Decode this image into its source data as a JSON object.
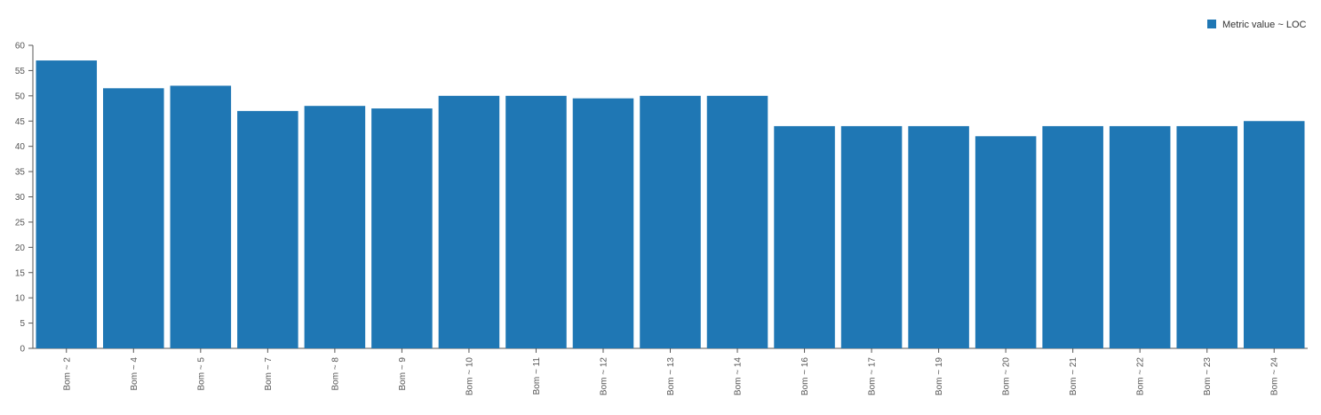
{
  "chart_data": {
    "type": "bar",
    "categories": [
      "Bom ~ 2",
      "Bom ~ 4",
      "Bom ~ 5",
      "Bom ~ 7",
      "Bom ~ 8",
      "Bom ~ 9",
      "Bom ~ 10",
      "Bom ~ 11",
      "Bom ~ 12",
      "Bom ~ 13",
      "Bom ~ 14",
      "Bom ~ 16",
      "Bom ~ 17",
      "Bom ~ 19",
      "Bom ~ 20",
      "Bom ~ 21",
      "Bom ~ 22",
      "Bom ~ 23",
      "Bom ~ 24"
    ],
    "series": [
      {
        "name": "Metric value ~ LOC",
        "color": "#1f77b4",
        "values": [
          57,
          51.5,
          52,
          47,
          48,
          47.5,
          50,
          50,
          49.5,
          50,
          50,
          44,
          44,
          44,
          42,
          44,
          44,
          44,
          45
        ]
      }
    ],
    "ylim": [
      0,
      60
    ],
    "yticks": [
      0,
      5,
      10,
      15,
      20,
      25,
      30,
      35,
      40,
      45,
      50,
      55,
      60
    ],
    "legend": {
      "label": "Metric value ~ LOC",
      "position": "top-right"
    },
    "grid": false,
    "xlabel": "",
    "ylabel": "",
    "title": ""
  }
}
